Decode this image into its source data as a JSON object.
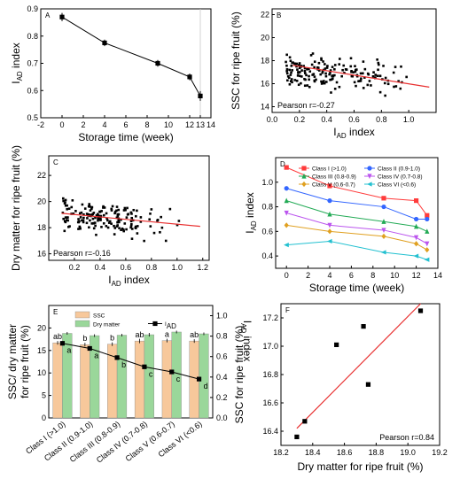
{
  "chart_data": [
    {
      "panel": "A",
      "type": "line",
      "xlabel": "Storage time (week)",
      "ylabel_main": "I",
      "ylabel_sub": "AD",
      "ylabel_tail": " index",
      "xlim": [
        -2,
        14
      ],
      "ylim": [
        0.5,
        0.9
      ],
      "xticks": [
        -2,
        0,
        2,
        4,
        6,
        8,
        10,
        12,
        13,
        14
      ],
      "xtick_labels": [
        "-2",
        "0",
        "2",
        "4",
        "6",
        "8",
        "10",
        "12",
        "13",
        "14"
      ],
      "yticks": [
        0.5,
        0.6,
        0.7,
        0.8,
        0.9
      ],
      "ytick_labels": [
        "0.5",
        "0.6",
        "0.7",
        "0.8",
        "0.9"
      ],
      "x": [
        0,
        4,
        9,
        12,
        13
      ],
      "y": [
        0.87,
        0.775,
        0.7,
        0.65,
        0.58
      ],
      "err": [
        0.015,
        0.012,
        0.012,
        0.012,
        0.018
      ],
      "vline": 13
    },
    {
      "panel": "B",
      "type": "scatter",
      "xlabel_main": "I",
      "xlabel_sub": "AD",
      "xlabel_tail": " index",
      "ylabel": "SSC for ripe fruit (%)",
      "xlim": [
        0.0,
        1.2
      ],
      "ylim": [
        13.5,
        22.5
      ],
      "xticks": [
        0.0,
        0.2,
        0.4,
        0.6,
        0.8,
        1.0
      ],
      "xtick_labels": [
        "0.0",
        "0.2",
        "0.4",
        "0.6",
        "0.8",
        "1.0"
      ],
      "yticks": [
        14,
        16,
        18,
        20,
        22
      ],
      "ytick_labels": [
        "14",
        "16",
        "18",
        "20",
        "22"
      ],
      "annotation": "Pearson r=-0.27",
      "fit": {
        "x": [
          0.15,
          1.15
        ],
        "y": [
          17.6,
          15.7
        ]
      },
      "n_points": 180,
      "x_range": [
        0.1,
        1.1
      ],
      "y_center": 16.7,
      "y_spread": 1.1
    },
    {
      "panel": "C",
      "type": "scatter",
      "xlabel_main": "I",
      "xlabel_sub": "AD",
      "xlabel_tail": "  index",
      "ylabel": "Dry matter for ripe fruit (%)",
      "xlim": [
        0.0,
        1.25
      ],
      "ylim": [
        15.5,
        23.5
      ],
      "xticks": [
        0.2,
        0.4,
        0.6,
        0.8,
        1.0,
        1.2
      ],
      "xtick_labels": [
        "0.2",
        "0.4",
        "0.6",
        "0.8",
        "1.0",
        "1.2"
      ],
      "yticks": [
        16,
        18,
        20,
        22
      ],
      "ytick_labels": [
        "16",
        "18",
        "20",
        "22"
      ],
      "annotation": "Pearson r=-0.16",
      "fit": {
        "x": [
          0.1,
          1.18
        ],
        "y": [
          19.1,
          18.1
        ]
      },
      "n_points": 180,
      "x_range": [
        0.1,
        1.1
      ],
      "y_center": 18.5,
      "y_spread": 1.0
    },
    {
      "panel": "D",
      "type": "line",
      "xlabel": "Storage time (week)",
      "ylabel_main": "I",
      "ylabel_sub": "AD",
      "ylabel_tail": " index",
      "xlim": [
        -1,
        14
      ],
      "ylim": [
        0.3,
        1.2
      ],
      "xticks": [
        0,
        2,
        4,
        6,
        8,
        10,
        12,
        14
      ],
      "xtick_labels": [
        "0",
        "2",
        "4",
        "6",
        "8",
        "10",
        "12",
        "14"
      ],
      "yticks": [
        0.4,
        0.6,
        0.8,
        1.0
      ],
      "ytick_labels": [
        "0.4",
        "0.6",
        "0.8",
        "1.0"
      ],
      "x": [
        0,
        4,
        9,
        12,
        13
      ],
      "series": [
        {
          "name": "Class I (>1.0)",
          "color": "#ff3b3b",
          "marker": "square",
          "values": [
            1.12,
            0.97,
            0.87,
            0.85,
            0.73
          ]
        },
        {
          "name": "Class II (0.9-1.0)",
          "color": "#3366ff",
          "marker": "circle",
          "values": [
            0.95,
            0.85,
            0.8,
            0.7,
            0.7
          ]
        },
        {
          "name": "Class III (0.8-0.9)",
          "color": "#22aa55",
          "marker": "triangle",
          "values": [
            0.85,
            0.74,
            0.68,
            0.64,
            0.6
          ]
        },
        {
          "name": "Class IV (0.7-0.8)",
          "color": "#bb55ee",
          "marker": "triangle-down",
          "values": [
            0.75,
            0.65,
            0.61,
            0.55,
            0.5
          ]
        },
        {
          "name": "Class V (0.6-0.7)",
          "color": "#e0a020",
          "marker": "diamond",
          "values": [
            0.65,
            0.6,
            0.56,
            0.5,
            0.45
          ]
        },
        {
          "name": "Class VI (<0.6)",
          "color": "#22c0d0",
          "marker": "triangle-left",
          "values": [
            0.49,
            0.52,
            0.43,
            0.4,
            0.37
          ]
        }
      ]
    },
    {
      "panel": "E",
      "type": "bar",
      "ylabel_lines": [
        "SSC/ dry matter",
        "for ripe fruit (%)"
      ],
      "y2label_main": "I",
      "y2label_sub": "AD",
      "y2label_tail": " index",
      "categories": [
        "Class I (>1.0)",
        "Class II (0.9-1.0)",
        "Class III (0.8-0.9)",
        "Class IV (0.7-0.8)",
        "Class V (0.6-0.7)",
        "Class VI (<0.6)"
      ],
      "ylim": [
        0,
        25
      ],
      "yticks": [
        0,
        5,
        10,
        15,
        20
      ],
      "ytick_labels": [
        "0",
        "5",
        "10",
        "15",
        "20"
      ],
      "y2lim": [
        0,
        1.1
      ],
      "y2ticks": [
        0.0,
        0.2,
        0.4,
        0.6,
        0.8,
        1.0
      ],
      "y2tick_labels": [
        "0.0",
        "0.2",
        "0.4",
        "0.6",
        "0.8",
        "1.0"
      ],
      "series": [
        {
          "name": "SSC",
          "color": "#f7c89b",
          "values": [
            16.7,
            16.3,
            16.4,
            17.1,
            17.2,
            17.1
          ],
          "err": [
            0.4,
            0.4,
            0.4,
            0.5,
            0.4,
            0.4
          ]
        },
        {
          "name": "Dry matter",
          "color": "#9ad79a",
          "values": [
            18.8,
            18.3,
            18.4,
            18.5,
            19.1,
            18.7
          ],
          "err": [
            0.3,
            0.3,
            0.3,
            0.4,
            0.3,
            0.3
          ]
        }
      ],
      "line": {
        "name": "I",
        "name_sub": "AD",
        "values": [
          0.73,
          0.68,
          0.59,
          0.5,
          0.45,
          0.38
        ],
        "err": [
          0.02,
          0.02,
          0.02,
          0.02,
          0.02,
          0.02
        ]
      },
      "bar_letters": [
        "ab",
        "b",
        "b",
        "ab",
        "a",
        "ab"
      ],
      "line_letters": [
        "a",
        "a",
        "b",
        "c",
        "c",
        "d"
      ]
    },
    {
      "panel": "F",
      "type": "scatter",
      "xlabel": "Dry matter for ripe fruit (%)",
      "ylabel": "SSC for ripe fruit (%)",
      "xlim": [
        18.2,
        19.2
      ],
      "ylim": [
        16.3,
        17.3
      ],
      "xticks": [
        18.2,
        18.4,
        18.6,
        18.8,
        19.0,
        19.2
      ],
      "xtick_labels": [
        "18.2",
        "18.4",
        "18.6",
        "18.8",
        "19.0",
        "19.2"
      ],
      "yticks": [
        16.4,
        16.6,
        16.8,
        17.0,
        17.2
      ],
      "ytick_labels": [
        "16.4",
        "16.6",
        "16.8",
        "17.0",
        "17.2"
      ],
      "x": [
        18.3,
        18.35,
        18.55,
        18.72,
        18.75,
        19.08
      ],
      "y": [
        16.36,
        16.47,
        17.01,
        17.14,
        16.73,
        17.25
      ],
      "annotation": "Pearson r=0.84",
      "fit": {
        "x": [
          18.3,
          19.08
        ],
        "y": [
          16.42,
          17.3
        ]
      }
    }
  ]
}
